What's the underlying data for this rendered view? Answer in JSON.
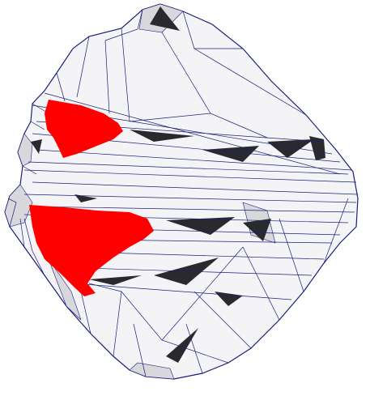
{
  "scene": {
    "background_color": "#ffffff",
    "edge_color": "#1a1f7a",
    "face_color": "#f4f4f6",
    "shade_light": "#d8d8dc",
    "shade_mid": "#a8a8ae",
    "shade_dark": "#2a2a2e",
    "highlight_color": "#ff0000",
    "highlight_regions": 2
  }
}
